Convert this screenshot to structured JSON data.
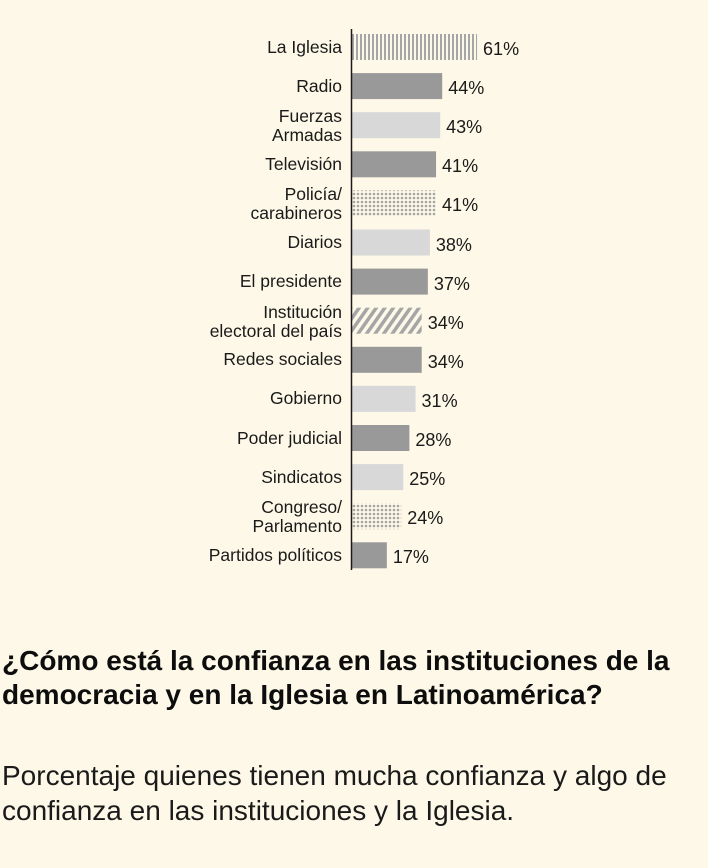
{
  "title": "¿Cómo está la confianza en las instituciones de la democracia y en la Iglesia en Latinoamérica?",
  "subtitle": "Porcentaje quienes tienen mucha confianza y algo de confianza en las instituciones y la Iglesia.",
  "chart_data": {
    "type": "bar",
    "orientation": "horizontal",
    "title": "¿Cómo está la confianza en las instituciones de la democracia y en la Iglesia en Latinoamérica?",
    "subtitle": "Porcentaje quienes tienen mucha confianza y algo de confianza en las instituciones y la Iglesia.",
    "xlim": [
      0,
      100
    ],
    "unit": "%",
    "grid": false,
    "legend": "none",
    "categories": [
      "La Iglesia",
      "Radio",
      "Fuerzas\nArmadas",
      "Televisión",
      "Policía/\ncarabineros",
      "Diarios",
      "El presidente",
      "Institución\nelectoral del país",
      "Redes sociales",
      "Gobierno",
      "Poder judicial",
      "Sindicatos",
      "Congreso/\nParlamento",
      "Partidos políticos"
    ],
    "values": [
      61,
      44,
      43,
      41,
      41,
      38,
      37,
      34,
      34,
      31,
      28,
      25,
      24,
      17
    ],
    "value_labels": [
      "61%",
      "44%",
      "43%",
      "41%",
      "41%",
      "38%",
      "37%",
      "34%",
      "34%",
      "31%",
      "28%",
      "25%",
      "24%",
      "17%"
    ],
    "fill_styles": [
      "vertical-lines",
      "solid-dark",
      "solid-light",
      "solid-dark",
      "dots",
      "solid-light",
      "solid-dark",
      "diagonal-lines",
      "solid-dark",
      "solid-light",
      "solid-dark",
      "solid-light",
      "dots",
      "solid-dark"
    ],
    "colors": {
      "dark": "#999999",
      "light": "#d8d8d8",
      "pattern": "#a6a6a6",
      "axis": "#1a1a1a"
    }
  }
}
